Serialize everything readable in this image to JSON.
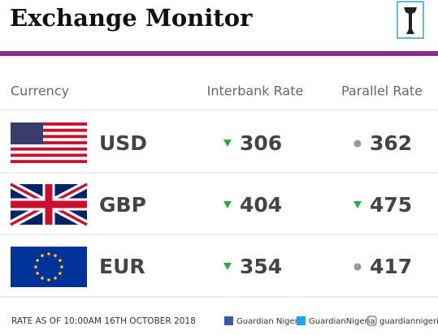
{
  "header": {
    "title": "Exchange Monitor"
  },
  "table": {
    "columns": [
      "Currency",
      "Interbank Rate",
      "Parallel Rate"
    ],
    "rows": [
      {
        "currency": "USD",
        "interbank": 306,
        "interbank_trend": "down",
        "parallel": 362,
        "parallel_trend": "flat"
      },
      {
        "currency": "GBP",
        "interbank": 404,
        "interbank_trend": "down",
        "parallel": 475,
        "parallel_trend": "down"
      },
      {
        "currency": "EUR",
        "interbank": 354,
        "interbank_trend": "down",
        "parallel": 417,
        "parallel_trend": "flat"
      }
    ]
  },
  "footer": {
    "note": "RATE AS OF 10:00AM 16TH OCTOBER 2018",
    "social": [
      "Guardian Nigeria",
      "GuardianNigeria",
      "guardiannigeria"
    ]
  }
}
